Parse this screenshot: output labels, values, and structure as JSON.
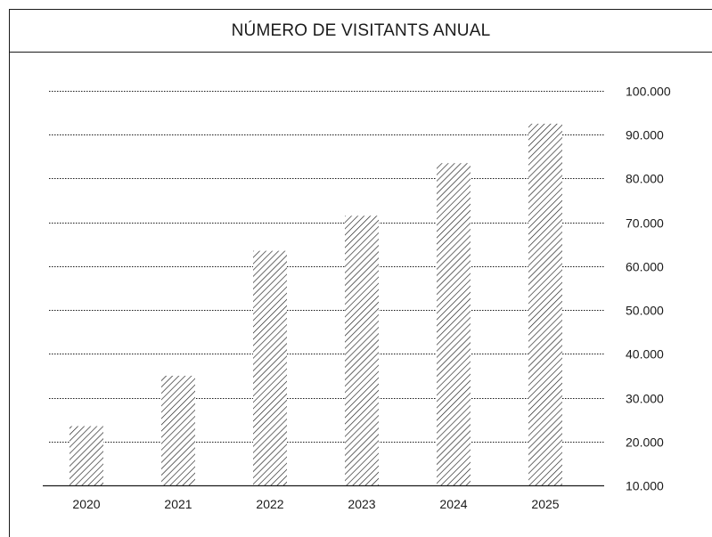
{
  "chart_data": {
    "type": "bar",
    "title": "NÚMERO DE VISITANTS ANUAL",
    "categories": [
      "2020",
      "2021",
      "2022",
      "2023",
      "2024",
      "2025"
    ],
    "values": [
      23500,
      35000,
      63500,
      71500,
      83500,
      92500
    ],
    "ylim": [
      10000,
      100000
    ],
    "yticks": [
      10000,
      20000,
      30000,
      40000,
      50000,
      60000,
      70000,
      80000,
      90000,
      100000
    ],
    "ytick_labels": [
      "10.000",
      "20.000",
      "30.000",
      "40.000",
      "50.000",
      "60.000",
      "70.000",
      "80.000",
      "90.000",
      "100.000"
    ],
    "xlabel": "",
    "ylabel": "",
    "grid": true,
    "y_axis_side": "right",
    "bar_fill": "diagonal-hatch"
  }
}
